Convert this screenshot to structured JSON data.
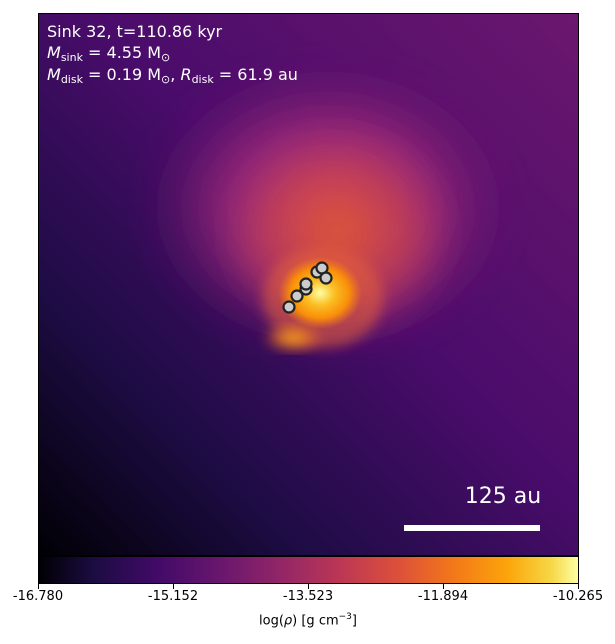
{
  "annotation": {
    "line1": "Sink 32, t=110.86 kyr",
    "m_sink_symbol": "M",
    "m_sink_sub": "sink",
    "m_sink_value": " = 4.55 M",
    "m_sink_unit_sub": "⊙",
    "m_disk_symbol": "M",
    "m_disk_sub": "disk",
    "m_disk_value": " = 0.19 M",
    "m_disk_unit_sub": "⊙",
    "r_sep": ", ",
    "r_disk_symbol": "R",
    "r_disk_sub": "disk",
    "r_disk_value": " = 61.9 au"
  },
  "scalebar": {
    "label": "125 au"
  },
  "colorbar": {
    "ticks": [
      "-16.780",
      "-15.152",
      "-13.523",
      "-11.894",
      "-10.265"
    ],
    "label_prefix": "log(",
    "label_rho": "ρ",
    "label_mid": ") [g cm",
    "label_exp": "−3",
    "label_suffix": "]"
  },
  "colors": {
    "colormap": "inferno-like",
    "sink_marker": "#cccccc",
    "scalebar": "#ffffff"
  },
  "sink_count": 7
}
